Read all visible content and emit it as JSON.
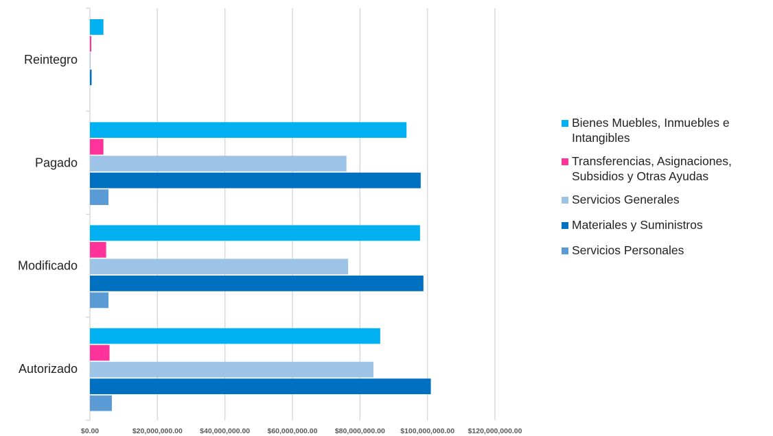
{
  "chart_data": {
    "type": "bar",
    "orientation": "horizontal",
    "categories": [
      "Autorizado",
      "Modificado",
      "Pagado",
      "Reintegro"
    ],
    "series": [
      {
        "name": "Servicios Personales",
        "color": "#5B9BD5",
        "values": [
          6500000,
          5500000,
          5500000,
          0
        ]
      },
      {
        "name": "Materiales y Suministros",
        "color": "#0070C0",
        "values": [
          101000000,
          98800000,
          98000000,
          500000
        ]
      },
      {
        "name": "Servicios Generales",
        "color": "#9DC3E6",
        "values": [
          84000000,
          76500000,
          76000000,
          200000
        ]
      },
      {
        "name": "Transferencias, Asignaciones, Subsidios y Otras Ayudas",
        "color": "#FF3399",
        "values": [
          5800000,
          4800000,
          4000000,
          400000
        ]
      },
      {
        "name": "Bienes Muebles, Inmuebles e Intangibles",
        "color": "#00B0F0",
        "values": [
          86000000,
          97800000,
          93800000,
          4000000
        ]
      }
    ],
    "legend_order": [
      4,
      3,
      2,
      1,
      0
    ],
    "x_ticks": [
      0,
      20000000,
      40000000,
      60000000,
      80000000,
      100000000,
      120000000
    ],
    "x_tick_labels": [
      "$0.00",
      "$20,000,000.00",
      "$40,000,000.00",
      "$60,000,000.00",
      "$80,000,000.00",
      "$100,000,000.00",
      "$120,000,000.00"
    ],
    "xlim": [
      0,
      120000000
    ],
    "grid": true,
    "legend_position": "right",
    "title": "",
    "xlabel": "",
    "ylabel": ""
  }
}
